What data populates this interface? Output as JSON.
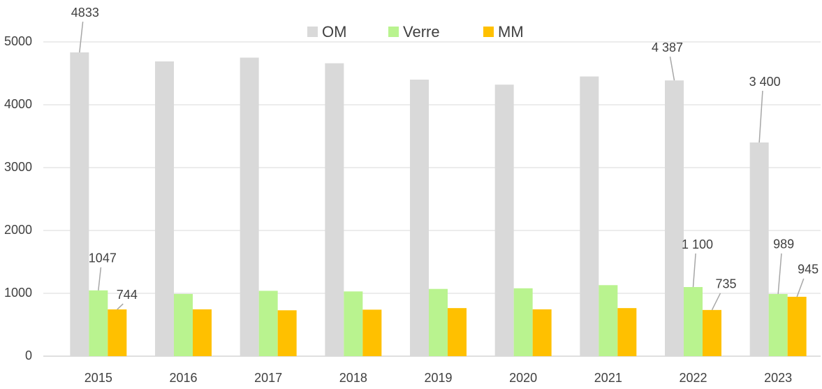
{
  "chart_data": {
    "type": "bar",
    "categories": [
      "2015",
      "2016",
      "2017",
      "2018",
      "2019",
      "2020",
      "2021",
      "2022",
      "2023"
    ],
    "series": [
      {
        "name": "OM",
        "color": "#d9d9d9",
        "values": [
          4833,
          4690,
          4750,
          4660,
          4400,
          4320,
          4450,
          4387,
          3400
        ],
        "value_labels": [
          "4833",
          null,
          null,
          null,
          null,
          null,
          null,
          "4 387",
          "3 400"
        ]
      },
      {
        "name": "Verre",
        "color": "#b9f38f",
        "values": [
          1047,
          990,
          1040,
          1030,
          1070,
          1080,
          1130,
          1100,
          989
        ],
        "value_labels": [
          "1047",
          null,
          null,
          null,
          null,
          null,
          null,
          "1 100",
          "989"
        ]
      },
      {
        "name": "MM",
        "color": "#ffc000",
        "values": [
          744,
          745,
          730,
          740,
          765,
          745,
          765,
          735,
          945
        ],
        "value_labels": [
          "744",
          null,
          null,
          null,
          null,
          null,
          null,
          "735",
          "945"
        ]
      }
    ],
    "ylim": [
      0,
      5000
    ],
    "yticks": [
      0,
      1000,
      2000,
      3000,
      4000,
      5000
    ],
    "grid": true,
    "legend": "top"
  }
}
